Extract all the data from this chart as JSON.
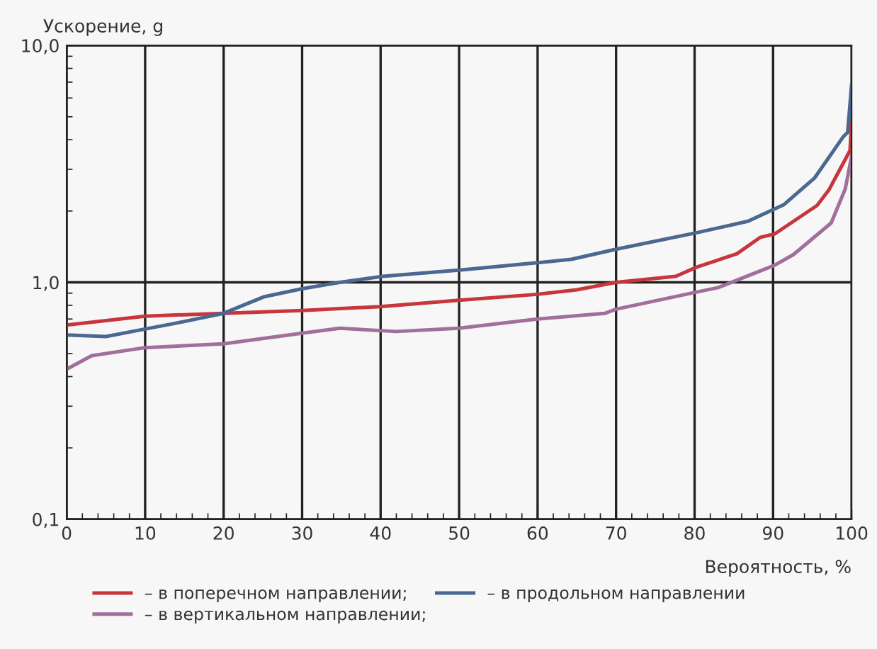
{
  "chart_data": {
    "type": "line",
    "ylabel": "Ускорение, g",
    "xlabel": "Вероятность, %",
    "log": "y",
    "grid": true,
    "legend": "bottom",
    "marker": "none",
    "line_style": "solid",
    "xlim": [
      0,
      100
    ],
    "xticks": [
      0,
      10,
      20,
      30,
      40,
      50,
      60,
      70,
      80,
      90,
      100
    ],
    "ylim": [
      0.1,
      10
    ],
    "yticks": [
      {
        "value": 0.1,
        "label": "0,1"
      },
      {
        "value": 1,
        "label": "1,0"
      },
      {
        "value": 10,
        "label": "10,0"
      }
    ],
    "series": [
      {
        "name": "– в поперечном направлении;",
        "color": "#c8363d",
        "x": [
          0,
          10,
          20,
          30,
          40,
          50,
          60,
          65,
          70,
          77.6,
          80.3,
          85.4,
          88.4,
          90.2,
          95.6,
          97.1,
          99.8,
          100
        ],
        "values": [
          0.66,
          0.72,
          0.74,
          0.76,
          0.79,
          0.84,
          0.89,
          0.93,
          1.0,
          1.06,
          1.16,
          1.32,
          1.55,
          1.6,
          2.11,
          2.45,
          3.6,
          4.7
        ]
      },
      {
        "name": "– в вертикальном направлении;",
        "color": "#a0709a",
        "x": [
          0,
          3.2,
          10,
          20,
          30,
          34.8,
          42,
          50,
          60,
          68.6,
          70,
          80.3,
          83,
          90.2,
          92.6,
          97.4,
          99.2,
          100
        ],
        "values": [
          0.43,
          0.49,
          0.53,
          0.55,
          0.61,
          0.64,
          0.62,
          0.64,
          0.7,
          0.74,
          0.77,
          0.91,
          0.95,
          1.18,
          1.31,
          1.78,
          2.48,
          3.4
        ]
      },
      {
        "name": "– в продольном направлении",
        "color": "#4a6890",
        "x": [
          0,
          5,
          10,
          13.7,
          20,
          25.2,
          30,
          34.8,
          40.3,
          50.5,
          60,
          64.3,
          70,
          80.3,
          86.8,
          91.4,
          95.3,
          98.9,
          99.5,
          100
        ],
        "values": [
          0.6,
          0.59,
          0.635,
          0.67,
          0.74,
          0.87,
          0.94,
          1.0,
          1.06,
          1.13,
          1.21,
          1.25,
          1.38,
          1.62,
          1.81,
          2.13,
          2.76,
          4.1,
          4.3,
          6.8
        ]
      }
    ]
  }
}
